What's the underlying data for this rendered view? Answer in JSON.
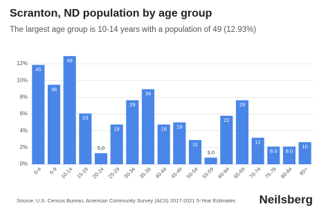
{
  "chart_data": {
    "type": "bar",
    "title": "Scranton, ND population by age group",
    "subtitle": "The largest age group is 10-14 years with a population of 49 (12.93%)",
    "categories": [
      "0-4",
      "5-9",
      "10-14",
      "15-19",
      "20-24",
      "25-29",
      "30-34",
      "35-39",
      "40-44",
      "45-49",
      "50-54",
      "55-59",
      "60-64",
      "65-69",
      "70-74",
      "75-79",
      "80-84",
      "85+"
    ],
    "values": [
      11.87,
      9.5,
      12.93,
      6.07,
      1.32,
      4.75,
      7.65,
      8.97,
      4.75,
      5.01,
      2.9,
      0.79,
      5.8,
      7.65,
      3.17,
      2.11,
      2.11,
      2.64
    ],
    "population_labels": [
      "45",
      "36",
      "49",
      "23",
      "5.0",
      "18",
      "29",
      "34",
      "18",
      "19",
      "11",
      "3.0",
      "22",
      "29",
      "12",
      "8.0",
      "8.0",
      "10"
    ],
    "color": "#4a86e8",
    "ylim": [
      0,
      13.5
    ],
    "yticks": [
      {
        "value": 0,
        "label": "0%"
      },
      {
        "value": 2,
        "label": "2%"
      },
      {
        "value": 4,
        "label": "4%"
      },
      {
        "value": 6,
        "label": "6%"
      },
      {
        "value": 8,
        "label": "8%"
      },
      {
        "value": 10,
        "label": "10%"
      },
      {
        "value": 12,
        "label": "12%"
      }
    ],
    "grid": true,
    "source": "Source: U.S. Census Bureau, American Community Survey (ACS) 2017-2021 5-Year Estimates",
    "brand": "Neilsberg"
  }
}
